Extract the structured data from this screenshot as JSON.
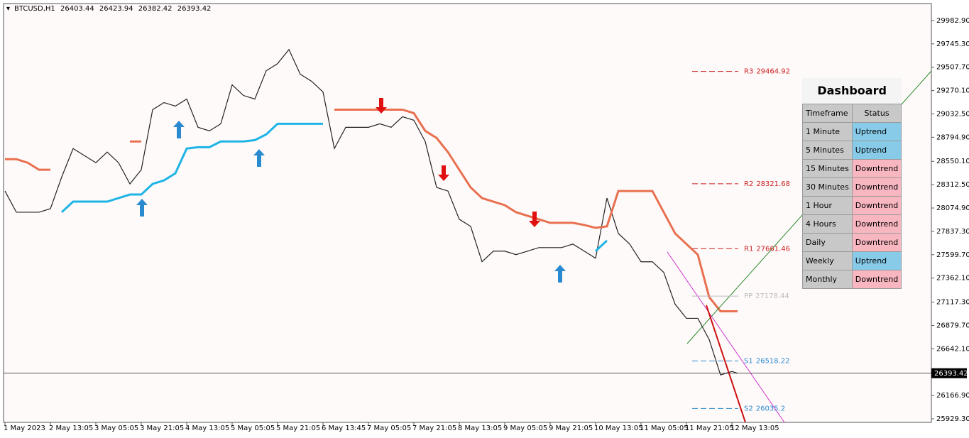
{
  "chart_data": {
    "type": "line",
    "symbol": "BTCUSD,H1",
    "ohlc": [
      26403.44,
      26423.94,
      26382.42,
      26393.42
    ],
    "x": [
      0,
      4,
      8,
      12,
      16,
      20,
      24,
      28,
      32,
      36,
      40,
      44,
      48,
      52,
      56,
      60,
      64,
      68,
      72,
      76,
      80,
      84,
      88,
      92,
      96,
      100,
      104,
      108,
      112,
      116,
      120,
      124,
      128,
      132,
      136,
      140,
      144,
      148,
      152,
      156,
      160,
      164,
      168,
      172,
      176,
      180,
      184,
      188,
      192,
      196,
      200,
      204,
      208,
      212,
      216,
      220,
      224,
      228,
      232,
      236,
      240,
      244,
      248,
      252,
      256,
      258
    ],
    "series": [
      {
        "color": "#222222",
        "width": 1.2,
        "values": [
          28248,
          28032,
          28032,
          28032,
          28068,
          28392,
          28680,
          28608,
          28536,
          28644,
          28536,
          28320,
          28464,
          29076,
          29148,
          29112,
          29184,
          28896,
          28860,
          28932,
          29328,
          29220,
          29184,
          29472,
          29544,
          29688,
          29436,
          29364,
          29256,
          28680,
          28896,
          28896,
          28896,
          28932,
          28896,
          29004,
          28968,
          28752,
          28284,
          28248,
          27960,
          27888,
          27528,
          27636,
          27636,
          27600,
          27636,
          27672,
          27672,
          27672,
          27708,
          27636,
          27564,
          28176,
          27816,
          27708,
          27528,
          27528,
          27420,
          27096,
          26952,
          26952,
          26736,
          26376,
          26412,
          26393.42
        ]
      },
      {
        "color": "#e8704f",
        "width": 3,
        "values": [
          28572,
          28572,
          28536,
          28464,
          28464,
          null,
          null,
          null,
          null,
          null,
          null,
          28752,
          28752,
          null,
          null,
          null,
          null,
          null,
          null,
          null,
          null,
          null,
          null,
          null,
          null,
          null,
          null,
          null,
          null,
          29076,
          29076,
          29076,
          29076,
          29076,
          29076,
          29076,
          29040,
          28860,
          28788,
          28644,
          28464,
          28284,
          28176,
          28140,
          28104,
          28032,
          27996,
          27960,
          27924,
          27924,
          27924,
          27902,
          27873,
          27888,
          28248,
          28248,
          28248,
          28248,
          28032,
          27816,
          27708,
          27600,
          27168,
          27024,
          27024,
          27024
        ]
      },
      {
        "color": "#1eb4e6",
        "width": 3,
        "values": [
          null,
          null,
          null,
          null,
          null,
          28032,
          28140,
          28140,
          28140,
          28140,
          28176,
          28212,
          28212,
          28320,
          28356,
          28428,
          28680,
          28694,
          28694,
          28752,
          28752,
          28752,
          28766,
          28824,
          28932,
          28932,
          28932,
          28932,
          28932,
          null,
          null,
          null,
          null,
          null,
          null,
          null,
          null,
          null,
          null,
          null,
          null,
          null,
          null,
          null,
          null,
          null,
          null,
          null,
          null,
          null,
          null,
          null,
          27636,
          27744,
          null,
          null,
          null,
          null,
          null,
          null,
          null,
          null,
          null,
          null,
          null,
          null
        ]
      }
    ],
    "pivots": [
      {
        "label": "R3",
        "value": 29464.92,
        "color": "#cc2020"
      },
      {
        "label": "R2",
        "value": 28321.68,
        "color": "#cc2020"
      },
      {
        "label": "R1",
        "value": 27661.46,
        "color": "#cc2020"
      },
      {
        "label": "PP",
        "value": 27178.44,
        "color": "#bbbbbb"
      },
      {
        "label": "S1",
        "value": 26518.22,
        "color": "#2a8ad0"
      },
      {
        "label": "S2",
        "value": 26035.2,
        "color": "#2a8ad0"
      }
    ],
    "xlim": [
      0,
      326
    ],
    "xticks": [
      {
        "value": 0,
        "label": "1 May 2023"
      },
      {
        "value": 16,
        "label": "2 May 13:05"
      },
      {
        "value": 32,
        "label": "3 May 05:05"
      },
      {
        "value": 48,
        "label": "3 May 21:05"
      },
      {
        "value": 64,
        "label": "4 May 13:05"
      },
      {
        "value": 80,
        "label": "5 May 05:05"
      },
      {
        "value": 96,
        "label": "5 May 21:05"
      },
      {
        "value": 112,
        "label": "6 May 13:45"
      },
      {
        "value": 128,
        "label": "7 May 05:05"
      },
      {
        "value": 144,
        "label": "7 May 21:05"
      },
      {
        "value": 160,
        "label": "8 May 13:05"
      },
      {
        "value": 176,
        "label": "9 May 05:05"
      },
      {
        "value": 192,
        "label": "9 May 21:05"
      },
      {
        "value": 208,
        "label": "10 May 13:05"
      },
      {
        "value": 224,
        "label": "11 May 05:05"
      },
      {
        "value": 240,
        "label": "11 May 21:05"
      },
      {
        "value": 256,
        "label": "12 May 13:05"
      }
    ],
    "ylim": [
      25893.3,
      30155.7
    ],
    "yticks": [
      {
        "value": 29982.9,
        "label": "29982.90"
      },
      {
        "value": 29745.3,
        "label": "29745.30"
      },
      {
        "value": 29507.7,
        "label": "29507.70"
      },
      {
        "value": 29270.1,
        "label": "29270.10"
      },
      {
        "value": 29032.5,
        "label": "29032.50"
      },
      {
        "value": 28794.9,
        "label": "28794.90"
      },
      {
        "value": 28550.1,
        "label": "28550.10"
      },
      {
        "value": 28312.5,
        "label": "28312.50"
      },
      {
        "value": 28074.9,
        "label": "28074.90"
      },
      {
        "value": 27837.3,
        "label": "27837.30"
      },
      {
        "value": 27599.7,
        "label": "27599.70"
      },
      {
        "value": 27362.1,
        "label": "27362.10"
      },
      {
        "value": 27117.3,
        "label": "27117.30"
      },
      {
        "value": 26879.7,
        "label": "26879.70"
      },
      {
        "value": 26642.1,
        "label": "26642.10"
      },
      {
        "value": 26166.9,
        "label": "26166.90"
      },
      {
        "value": 25929.3,
        "label": "25929.30"
      }
    ]
  },
  "dashboard": {
    "title": "Dashboard",
    "columns": [
      "Timeframe",
      "Status"
    ],
    "rows": [
      {
        "timeframe": "1 Minute",
        "status": "Uptrend",
        "color": "#87cbe9"
      },
      {
        "timeframe": "5 Minutes",
        "status": "Uptrend",
        "color": "#87cbe9"
      },
      {
        "timeframe": "15 Minutes",
        "status": "Downtrend",
        "color": "#f8b6c0"
      },
      {
        "timeframe": "30 Minutes",
        "status": "Downtrend",
        "color": "#f8b6c0"
      },
      {
        "timeframe": "1 Hour",
        "status": "Downtrend",
        "color": "#f8b6c0"
      },
      {
        "timeframe": "4 Hours",
        "status": "Downtrend",
        "color": "#f8b6c0"
      },
      {
        "timeframe": "Daily",
        "status": "Downtrend",
        "color": "#f8b6c0"
      },
      {
        "timeframe": "Weekly",
        "status": "Uptrend",
        "color": "#87cbe9"
      },
      {
        "timeframe": "Monthly",
        "status": "Downtrend",
        "color": "#f8b6c0"
      }
    ]
  }
}
